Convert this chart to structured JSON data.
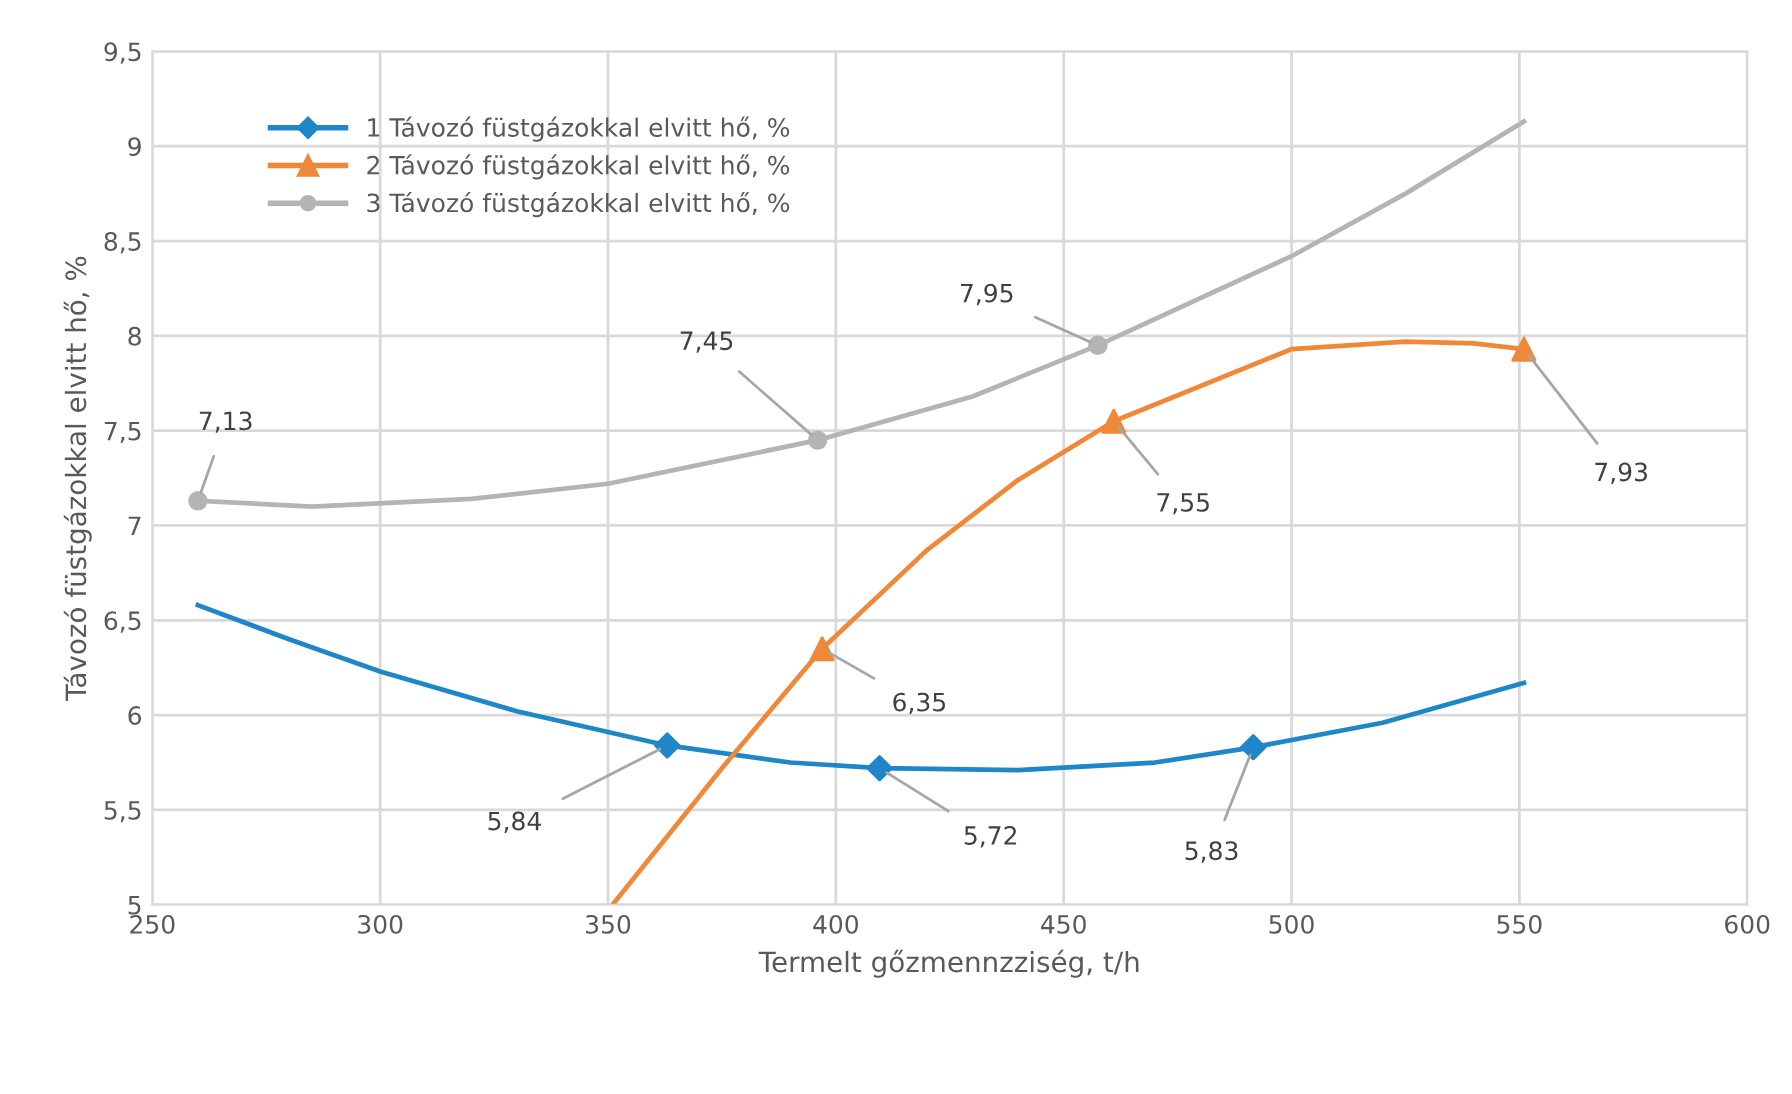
{
  "chart_data": {
    "type": "line",
    "xlabel": "Termelt gőzmennzziség, t/h",
    "ylabel": "Távozó füstgázokkal elvitt hő, %",
    "xlim": [
      250,
      600
    ],
    "xticks": [
      250,
      300,
      350,
      400,
      450,
      500,
      550,
      600
    ],
    "ylim": [
      5,
      9.5
    ],
    "yticks": [
      5,
      {
        "value": 5.5,
        "label": "5,5"
      },
      6,
      {
        "value": 6.5,
        "label": "6,5"
      },
      7,
      {
        "value": 7.5,
        "label": "7,5"
      },
      8,
      {
        "value": 8.5,
        "label": "8,5"
      },
      9,
      {
        "value": 9.5,
        "label": "9,5"
      }
    ],
    "grid": true,
    "legend": "top left",
    "series": [
      {
        "type": "scatter",
        "name": "1 Távozó füstgázokkal elvitt hő, %",
        "color": "#1f86c8",
        "marker": "diamond",
        "x": [
          363,
          409.6,
          491.6
        ],
        "values": [
          5.84,
          5.72,
          5.83
        ],
        "value_labels": [
          "5,84",
          "5,72",
          "5,83"
        ]
      },
      {
        "type": "scatter",
        "name": "2 Távozó füstgázokkal elvitt hő, %",
        "color": "#f0883a",
        "marker": "triangle",
        "x": [
          397,
          461,
          551
        ],
        "values": [
          6.35,
          7.55,
          7.93
        ],
        "value_labels": [
          "6,35",
          "7,55",
          "7,93"
        ]
      },
      {
        "type": "scatter",
        "name": "3 Távozó füstgázokkal elvitt hő, %",
        "color": "#b4b4b4",
        "marker": "circle",
        "x": [
          260,
          396,
          457.5
        ],
        "values": [
          7.13,
          7.45,
          7.95
        ],
        "value_labels": [
          "7,13",
          "7,45",
          "7,95"
        ]
      },
      {
        "color": "#1f86c8",
        "x": [
          260,
          280,
          300,
          330,
          363,
          390,
          409.6,
          440,
          470,
          491.6,
          520,
          551
        ],
        "values": [
          6.58,
          6.4,
          6.23,
          6.02,
          5.84,
          5.75,
          5.72,
          5.71,
          5.75,
          5.83,
          5.96,
          6.17
        ]
      },
      {
        "color": "#f0883a",
        "x": [
          351,
          375,
          397,
          420,
          440,
          461,
          500,
          525,
          540,
          551
        ],
        "values": [
          5.0,
          5.72,
          6.35,
          6.87,
          7.24,
          7.55,
          7.93,
          7.97,
          7.96,
          7.93
        ]
      },
      {
        "color": "#b4b4b4",
        "x": [
          260,
          285,
          320,
          350,
          396,
          430,
          457.5,
          500,
          525,
          551
        ],
        "values": [
          7.13,
          7.1,
          7.14,
          7.22,
          7.45,
          7.68,
          7.95,
          8.42,
          8.75,
          9.13
        ]
      }
    ]
  }
}
